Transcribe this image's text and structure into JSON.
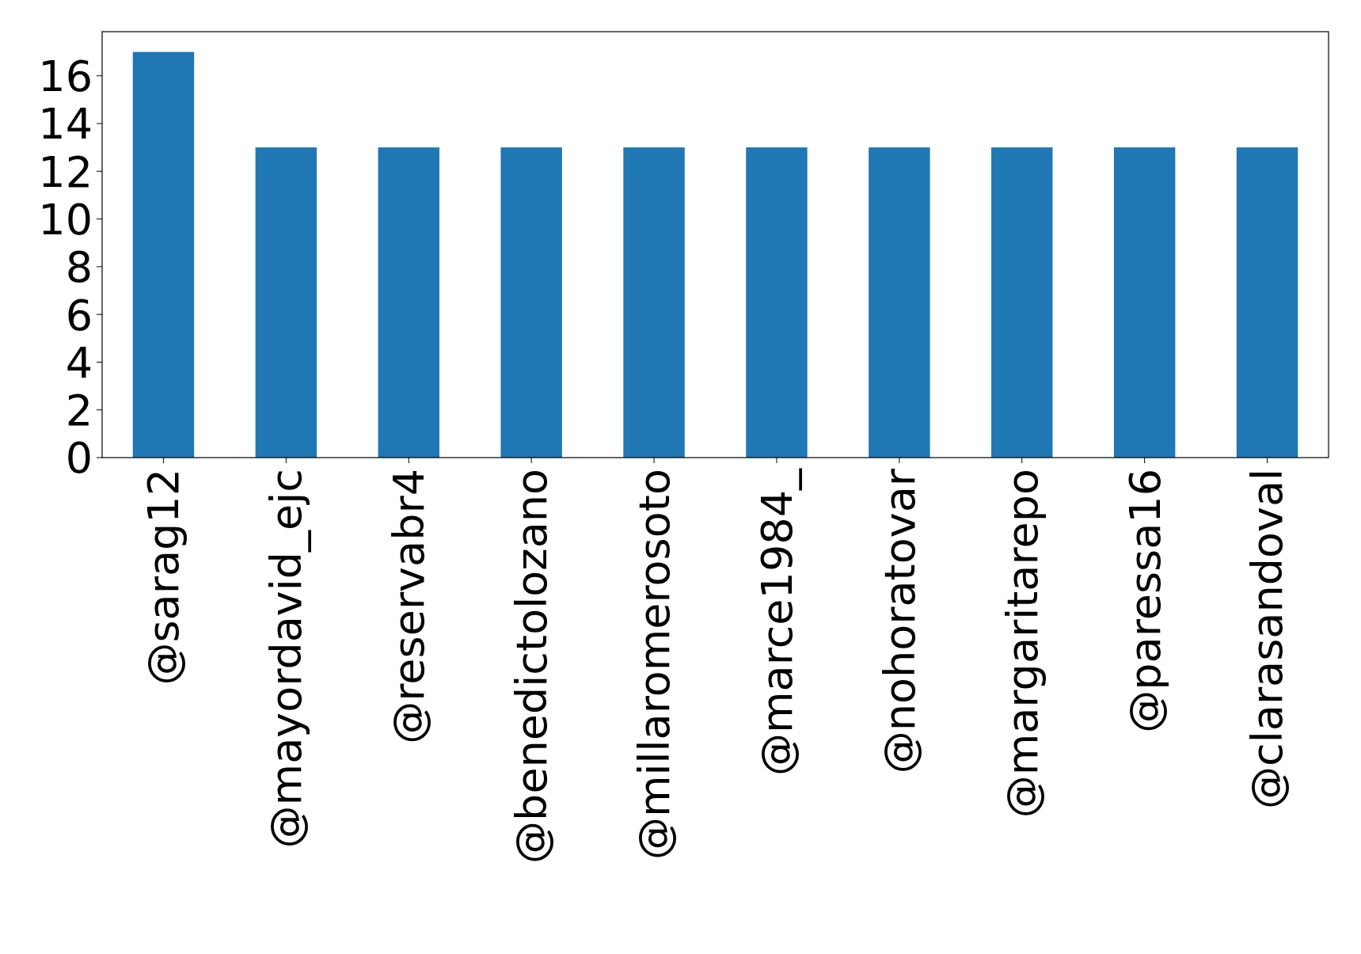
{
  "chart_data": {
    "type": "bar",
    "categories": [
      "@sarag12",
      "@mayordavid_ejc",
      "@reservabr4",
      "@benedictolozano",
      "@millaromerosoto",
      "@marce1984_",
      "@nohoratovar",
      "@margaritarepo",
      "@paressa16",
      "@clarasandoval"
    ],
    "values": [
      17,
      13,
      13,
      13,
      13,
      13,
      13,
      13,
      13,
      13
    ],
    "color": "#1f77b4",
    "ylim": [
      0,
      17.85
    ],
    "yticks": [
      0,
      2,
      4,
      6,
      8,
      10,
      12,
      14,
      16
    ]
  }
}
